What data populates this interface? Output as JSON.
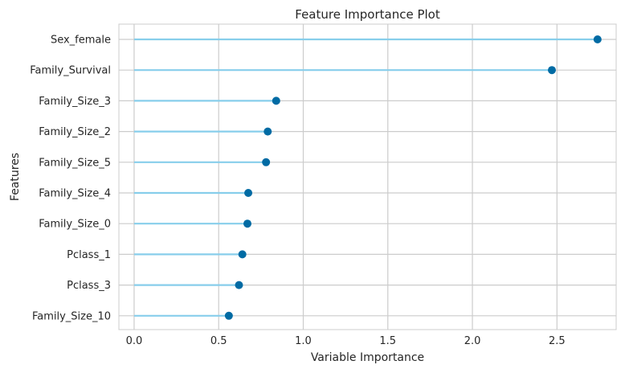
{
  "chart_data": {
    "type": "lollipop",
    "title": "Feature Importance Plot",
    "xlabel": "Variable Importance",
    "ylabel": "Features",
    "xlim": [
      -0.09,
      2.85
    ],
    "xticks": [
      0.0,
      0.5,
      1.0,
      1.5,
      2.0,
      2.5
    ],
    "xtick_labels": [
      "0.0",
      "0.5",
      "1.0",
      "1.5",
      "2.0",
      "2.5"
    ],
    "grid": true,
    "categories": [
      "Sex_female",
      "Family_Survival",
      "Family_Size_3",
      "Family_Size_2",
      "Family_Size_5",
      "Family_Size_4",
      "Family_Size_0",
      "Pclass_1",
      "Pclass_3",
      "Family_Size_10"
    ],
    "values": [
      2.74,
      2.47,
      0.84,
      0.79,
      0.78,
      0.675,
      0.67,
      0.64,
      0.62,
      0.56
    ],
    "colors": {
      "stem": "#87ceeb",
      "marker": "#006ba4",
      "grid": "#cccccc",
      "frame": "#cccccc"
    }
  }
}
